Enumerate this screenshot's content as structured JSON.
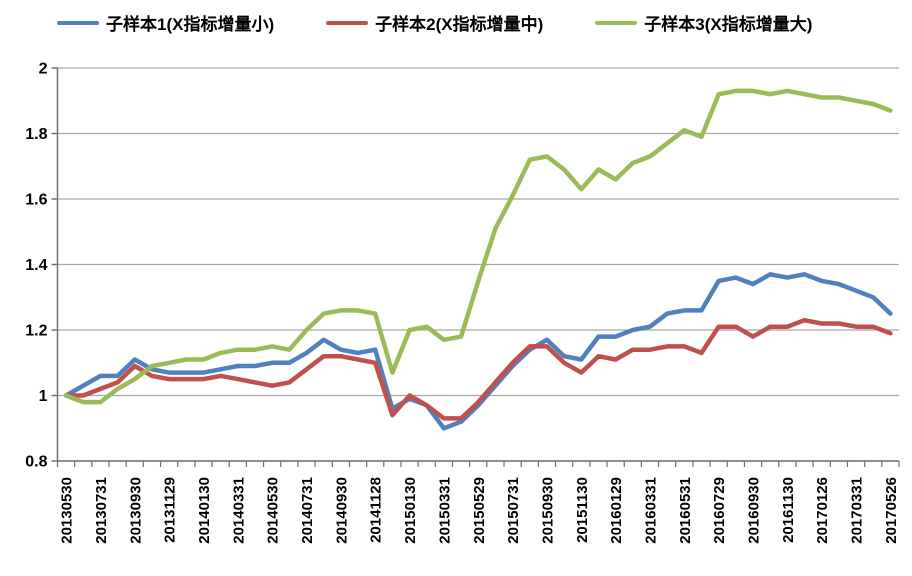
{
  "chart_data": {
    "type": "line",
    "title": "",
    "n_points": 49,
    "x_label_every_nth_point": 2,
    "x_tick_labels": [
      "20130530",
      "20130731",
      "20130930",
      "20131129",
      "20140130",
      "20140331",
      "20140530",
      "20140731",
      "20140930",
      "20141128",
      "20150130",
      "20150331",
      "20150529",
      "20150731",
      "20150930",
      "20151130",
      "20160129",
      "20160331",
      "20160531",
      "20160729",
      "20160930",
      "20161130",
      "20170126",
      "20170331",
      "20170526"
    ],
    "ylim": [
      0.8,
      2.0
    ],
    "yticks": [
      0.8,
      1.0,
      1.2,
      1.4,
      1.6,
      1.8,
      2.0
    ],
    "ytick_labels": [
      "0.8",
      "1",
      "1.2",
      "1.4",
      "1.6",
      "1.8",
      "2"
    ],
    "grid": "horizontal",
    "legend_position": "top",
    "background": "#FFFFFF",
    "axis_color": "#707070",
    "gridline_color": "#A6A6A6",
    "text_color": "#000000",
    "series": [
      {
        "name": "子样本1(X指标增量小)",
        "color": "#4F81BD",
        "values": [
          1.0,
          1.03,
          1.06,
          1.06,
          1.11,
          1.08,
          1.07,
          1.07,
          1.07,
          1.08,
          1.09,
          1.09,
          1.1,
          1.1,
          1.13,
          1.17,
          1.14,
          1.13,
          1.14,
          0.96,
          0.99,
          0.97,
          0.9,
          0.92,
          0.97,
          1.03,
          1.09,
          1.14,
          1.17,
          1.12,
          1.11,
          1.18,
          1.18,
          1.2,
          1.21,
          1.25,
          1.26,
          1.26,
          1.35,
          1.36,
          1.34,
          1.37,
          1.36,
          1.37,
          1.35,
          1.34,
          1.32,
          1.3,
          1.25
        ]
      },
      {
        "name": "子样本2(X指标增量中)",
        "color": "#C0504D",
        "values": [
          1.0,
          1.0,
          1.02,
          1.04,
          1.09,
          1.06,
          1.05,
          1.05,
          1.05,
          1.06,
          1.05,
          1.04,
          1.03,
          1.04,
          1.08,
          1.12,
          1.12,
          1.11,
          1.1,
          0.94,
          1.0,
          0.97,
          0.93,
          0.93,
          0.98,
          1.04,
          1.1,
          1.15,
          1.15,
          1.1,
          1.07,
          1.12,
          1.11,
          1.14,
          1.14,
          1.15,
          1.15,
          1.13,
          1.21,
          1.21,
          1.18,
          1.21,
          1.21,
          1.23,
          1.22,
          1.22,
          1.21,
          1.21,
          1.19
        ]
      },
      {
        "name": "子样本3(X指标增量大)",
        "color": "#9BBB59",
        "values": [
          1.0,
          0.98,
          0.98,
          1.02,
          1.05,
          1.09,
          1.1,
          1.11,
          1.11,
          1.13,
          1.14,
          1.14,
          1.15,
          1.14,
          1.2,
          1.25,
          1.26,
          1.26,
          1.25,
          1.07,
          1.2,
          1.21,
          1.17,
          1.18,
          1.35,
          1.51,
          1.61,
          1.72,
          1.73,
          1.69,
          1.63,
          1.69,
          1.66,
          1.71,
          1.73,
          1.77,
          1.81,
          1.79,
          1.92,
          1.93,
          1.93,
          1.92,
          1.93,
          1.92,
          1.91,
          1.91,
          1.9,
          1.89,
          1.87
        ]
      }
    ]
  }
}
